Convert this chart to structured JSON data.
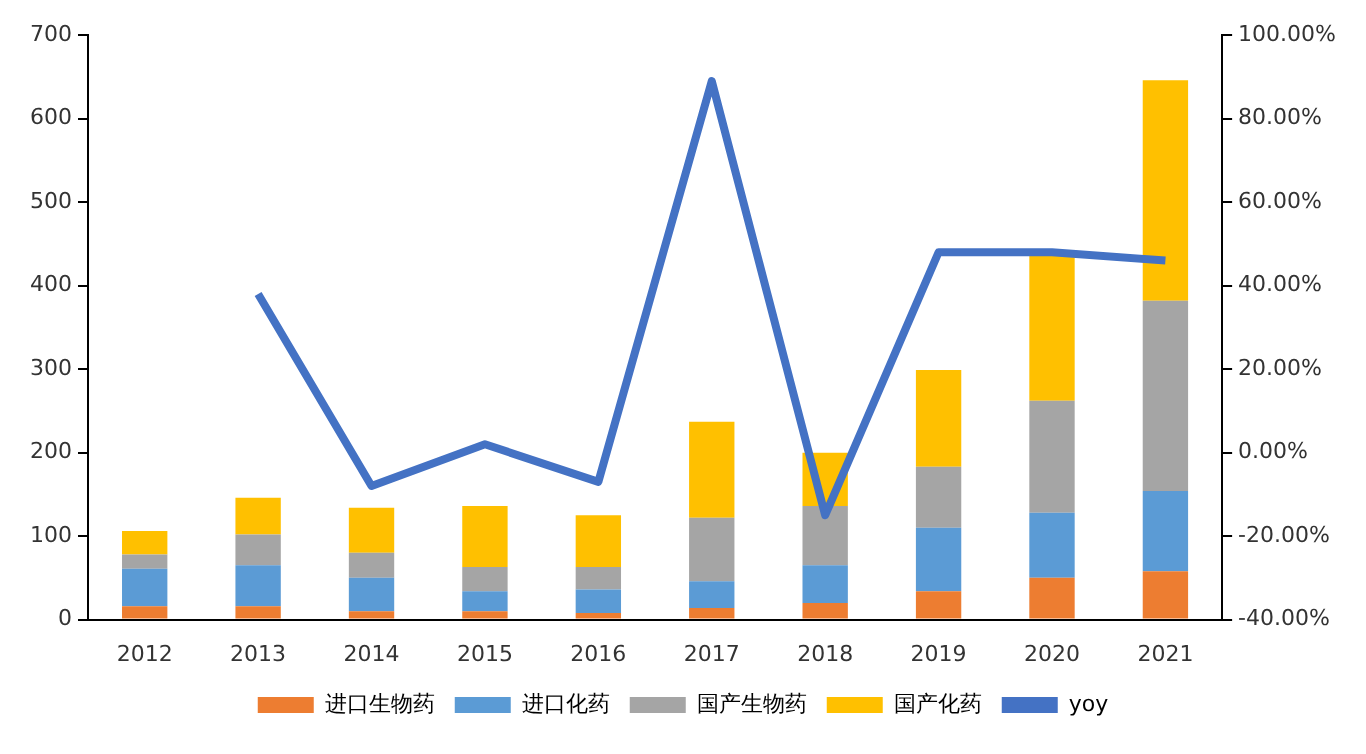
{
  "chart_data": {
    "type": "bar",
    "stacked": true,
    "categories": [
      "2012",
      "2013",
      "2014",
      "2015",
      "2016",
      "2017",
      "2018",
      "2019",
      "2020",
      "2021"
    ],
    "series": [
      {
        "name": "进口生物药",
        "color": "#ed7d31",
        "values": [
          16,
          16,
          10,
          10,
          8,
          14,
          20,
          34,
          50,
          58
        ]
      },
      {
        "name": "进口化药",
        "color": "#5b9bd5",
        "values": [
          45,
          49,
          40,
          24,
          28,
          32,
          45,
          76,
          78,
          96
        ]
      },
      {
        "name": "国产生物药",
        "color": "#a5a5a5",
        "values": [
          17,
          37,
          30,
          29,
          27,
          76,
          71,
          73,
          134,
          228
        ]
      },
      {
        "name": "国产化药",
        "color": "#ffc000",
        "values": [
          28,
          44,
          54,
          73,
          62,
          115,
          64,
          116,
          178,
          264
        ]
      },
      {
        "name": "yoy",
        "type": "line",
        "axis": "y2",
        "color": "#4472c4",
        "values": [
          null,
          38,
          -8,
          2,
          -7,
          89,
          -15,
          48,
          48,
          46
        ]
      }
    ],
    "ylim": [
      0,
      700
    ],
    "yticks": [
      0,
      100,
      200,
      300,
      400,
      500,
      600,
      700
    ],
    "y2lim": [
      -40,
      100
    ],
    "y2ticks": [
      {
        "value": -40,
        "label": "-40.00%"
      },
      {
        "value": -20,
        "label": "-20.00%"
      },
      {
        "value": 0,
        "label": "0.00%"
      },
      {
        "value": 20,
        "label": "20.00%"
      },
      {
        "value": 40,
        "label": "40.00%"
      },
      {
        "value": 60,
        "label": "60.00%"
      },
      {
        "value": 80,
        "label": "80.00%"
      },
      {
        "value": 100,
        "label": "100.00%"
      }
    ],
    "grid": false,
    "legend": "bottom",
    "marker": "none",
    "line_style": "solid"
  }
}
